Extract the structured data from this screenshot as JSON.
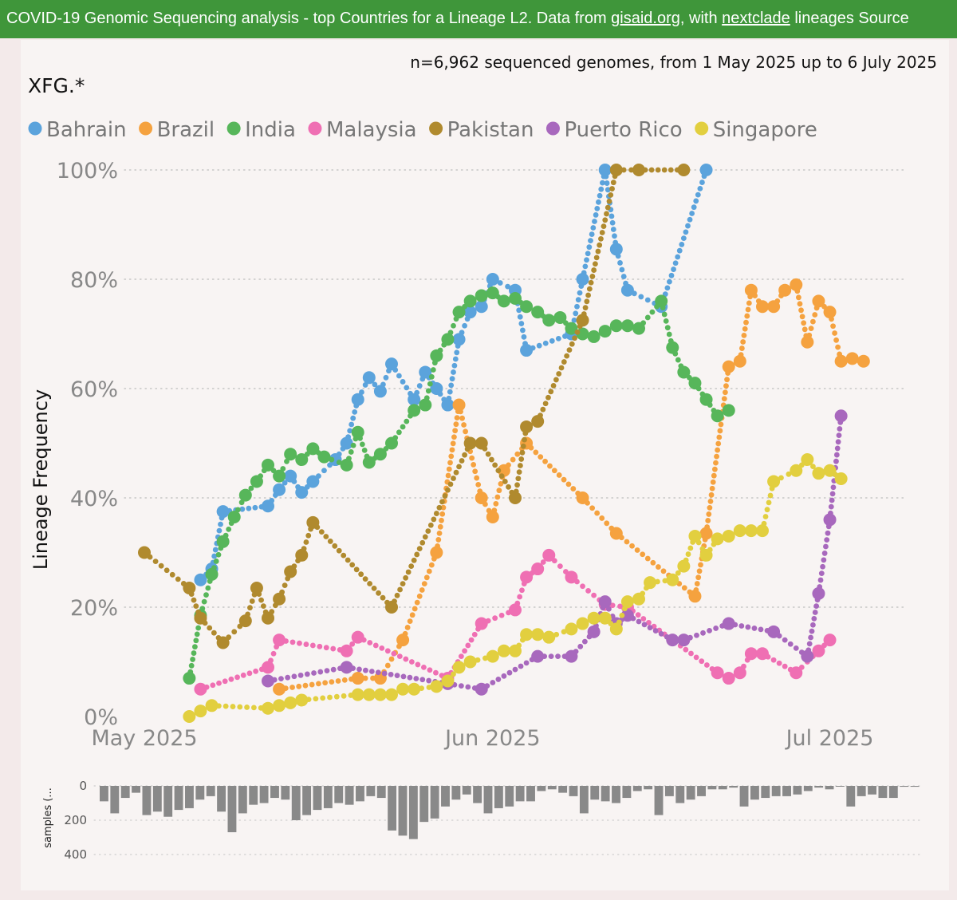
{
  "banner": {
    "prefix": "COVID-19 Genomic Sequencing analysis - top Countries for a Lineage L2. Data from ",
    "link1": "gisaid.org",
    "middle": ", with ",
    "link2": "nextclade",
    "suffix": " lineages Source"
  },
  "chart_data": {
    "type": "line",
    "subtitle": "n=6,962 sequenced genomes, from 1 May 2025 up to 6 July 2025",
    "lineage_label": "XFG.*",
    "ylabel": "Lineage Frequency",
    "yticks": [
      "0%",
      "20%",
      "40%",
      "60%",
      "80%",
      "100%"
    ],
    "ylim": [
      0,
      100
    ],
    "xticks": [
      {
        "label": "May 2025",
        "date": "2025-05-01"
      },
      {
        "label": "Jun 2025",
        "date": "2025-06-01"
      },
      {
        "label": "Jul 2025",
        "date": "2025-07-01"
      }
    ],
    "xlim": [
      "2025-05-01",
      "2025-07-06"
    ],
    "grid": "horizontal dotted",
    "legend_position": "top",
    "series": [
      {
        "name": "Bahrain",
        "color": "#5ba3dc",
        "points": [
          [
            "2025-05-06",
            25
          ],
          [
            "2025-05-07",
            27
          ],
          [
            "2025-05-08",
            37.5
          ],
          [
            "2025-05-12",
            38.5
          ],
          [
            "2025-05-13",
            41.5
          ],
          [
            "2025-05-14",
            44
          ],
          [
            "2025-05-15",
            41
          ],
          [
            "2025-05-16",
            43
          ],
          [
            "2025-05-18",
            47
          ],
          [
            "2025-05-19",
            50
          ],
          [
            "2025-05-20",
            58
          ],
          [
            "2025-05-21",
            62
          ],
          [
            "2025-05-22",
            59.5
          ],
          [
            "2025-05-23",
            64.5
          ],
          [
            "2025-05-25",
            58
          ],
          [
            "2025-05-26",
            63
          ],
          [
            "2025-05-27",
            60
          ],
          [
            "2025-05-28",
            57
          ],
          [
            "2025-05-29",
            69
          ],
          [
            "2025-05-30",
            74
          ],
          [
            "2025-05-31",
            75
          ],
          [
            "2025-06-01",
            80
          ],
          [
            "2025-06-03",
            78
          ],
          [
            "2025-06-04",
            67
          ],
          [
            "2025-06-08",
            70
          ],
          [
            "2025-06-09",
            80
          ],
          [
            "2025-06-11",
            100
          ],
          [
            "2025-06-12",
            85.5
          ],
          [
            "2025-06-13",
            78
          ],
          [
            "2025-06-16",
            75
          ],
          [
            "2025-06-20",
            100
          ]
        ]
      },
      {
        "name": "Brazil",
        "color": "#f5a23f",
        "points": [
          [
            "2025-05-13",
            5
          ],
          [
            "2025-05-20",
            7
          ],
          [
            "2025-05-22",
            7
          ],
          [
            "2025-05-24",
            14
          ],
          [
            "2025-05-27",
            30
          ],
          [
            "2025-05-29",
            57
          ],
          [
            "2025-05-31",
            40
          ],
          [
            "2025-06-01",
            36.5
          ],
          [
            "2025-06-02",
            45
          ],
          [
            "2025-06-04",
            50
          ],
          [
            "2025-06-09",
            40
          ],
          [
            "2025-06-12",
            33.5
          ],
          [
            "2025-06-19",
            22
          ],
          [
            "2025-06-20",
            33.5
          ],
          [
            "2025-06-22",
            64
          ],
          [
            "2025-06-23",
            65
          ],
          [
            "2025-06-24",
            78
          ],
          [
            "2025-06-25",
            75
          ],
          [
            "2025-06-26",
            75
          ],
          [
            "2025-06-27",
            78
          ],
          [
            "2025-06-28",
            79
          ],
          [
            "2025-06-29",
            68.5
          ],
          [
            "2025-06-30",
            76
          ],
          [
            "2025-07-01",
            74
          ],
          [
            "2025-07-02",
            65
          ],
          [
            "2025-07-03",
            65.5
          ],
          [
            "2025-07-04",
            65
          ]
        ]
      },
      {
        "name": "India",
        "color": "#57b65a",
        "points": [
          [
            "2025-05-05",
            7
          ],
          [
            "2025-05-06",
            18.5
          ],
          [
            "2025-05-07",
            26
          ],
          [
            "2025-05-08",
            32
          ],
          [
            "2025-05-09",
            36.5
          ],
          [
            "2025-05-10",
            40.5
          ],
          [
            "2025-05-11",
            43
          ],
          [
            "2025-05-12",
            46
          ],
          [
            "2025-05-13",
            44
          ],
          [
            "2025-05-14",
            48
          ],
          [
            "2025-05-15",
            47
          ],
          [
            "2025-05-16",
            49
          ],
          [
            "2025-05-17",
            47.5
          ],
          [
            "2025-05-19",
            46
          ],
          [
            "2025-05-20",
            52
          ],
          [
            "2025-05-21",
            46.5
          ],
          [
            "2025-05-22",
            48
          ],
          [
            "2025-05-23",
            50
          ],
          [
            "2025-05-25",
            56
          ],
          [
            "2025-05-26",
            57
          ],
          [
            "2025-05-27",
            66
          ],
          [
            "2025-05-28",
            69
          ],
          [
            "2025-05-29",
            74
          ],
          [
            "2025-05-30",
            76
          ],
          [
            "2025-05-31",
            77
          ],
          [
            "2025-06-01",
            77.5
          ],
          [
            "2025-06-02",
            76
          ],
          [
            "2025-06-03",
            76.5
          ],
          [
            "2025-06-04",
            75
          ],
          [
            "2025-06-05",
            74
          ],
          [
            "2025-06-06",
            72.5
          ],
          [
            "2025-06-07",
            73
          ],
          [
            "2025-06-08",
            71
          ],
          [
            "2025-06-09",
            70
          ],
          [
            "2025-06-10",
            69.5
          ],
          [
            "2025-06-11",
            70.5
          ],
          [
            "2025-06-12",
            71.5
          ],
          [
            "2025-06-13",
            71.5
          ],
          [
            "2025-06-14",
            71
          ],
          [
            "2025-06-16",
            76
          ],
          [
            "2025-06-17",
            67.5
          ],
          [
            "2025-06-18",
            63
          ],
          [
            "2025-06-19",
            61
          ],
          [
            "2025-06-20",
            58
          ],
          [
            "2025-06-21",
            55
          ],
          [
            "2025-06-22",
            56
          ]
        ]
      },
      {
        "name": "Malaysia",
        "color": "#ef6fb3",
        "points": [
          [
            "2025-05-06",
            5
          ],
          [
            "2025-05-12",
            9
          ],
          [
            "2025-05-13",
            14
          ],
          [
            "2025-05-19",
            12
          ],
          [
            "2025-05-20",
            14.5
          ],
          [
            "2025-05-28",
            7
          ],
          [
            "2025-05-31",
            17
          ],
          [
            "2025-06-03",
            19.5
          ],
          [
            "2025-06-04",
            25.5
          ],
          [
            "2025-06-05",
            27
          ],
          [
            "2025-06-06",
            29.5
          ],
          [
            "2025-06-08",
            25.5
          ],
          [
            "2025-06-11",
            20.5
          ],
          [
            "2025-06-13",
            20
          ],
          [
            "2025-06-21",
            8
          ],
          [
            "2025-06-22",
            7
          ],
          [
            "2025-06-23",
            8
          ],
          [
            "2025-06-24",
            11.5
          ],
          [
            "2025-06-25",
            11.5
          ],
          [
            "2025-06-28",
            8
          ],
          [
            "2025-06-30",
            12
          ],
          [
            "2025-07-01",
            14
          ]
        ]
      },
      {
        "name": "Pakistan",
        "color": "#b08a2e",
        "points": [
          [
            "2025-05-01",
            30
          ],
          [
            "2025-05-05",
            23.5
          ],
          [
            "2025-05-06",
            18
          ],
          [
            "2025-05-08",
            13.5
          ],
          [
            "2025-05-10",
            17.5
          ],
          [
            "2025-05-11",
            23.5
          ],
          [
            "2025-05-12",
            18
          ],
          [
            "2025-05-13",
            21.5
          ],
          [
            "2025-05-14",
            26.5
          ],
          [
            "2025-05-15",
            29.5
          ],
          [
            "2025-05-16",
            35.5
          ],
          [
            "2025-05-23",
            20
          ],
          [
            "2025-05-30",
            50
          ],
          [
            "2025-05-31",
            50
          ],
          [
            "2025-06-03",
            40
          ],
          [
            "2025-06-04",
            53
          ],
          [
            "2025-06-05",
            54
          ],
          [
            "2025-06-09",
            72.5
          ],
          [
            "2025-06-12",
            100
          ],
          [
            "2025-06-14",
            100
          ],
          [
            "2025-06-18",
            100
          ]
        ]
      },
      {
        "name": "Puerto Rico",
        "color": "#a868bd",
        "points": [
          [
            "2025-05-12",
            6.5
          ],
          [
            "2025-05-19",
            9
          ],
          [
            "2025-05-28",
            6
          ],
          [
            "2025-05-31",
            5
          ],
          [
            "2025-06-05",
            11
          ],
          [
            "2025-06-08",
            11
          ],
          [
            "2025-06-10",
            15.5
          ],
          [
            "2025-06-11",
            21
          ],
          [
            "2025-06-12",
            17
          ],
          [
            "2025-06-13",
            18.5
          ],
          [
            "2025-06-17",
            14
          ],
          [
            "2025-06-18",
            14
          ],
          [
            "2025-06-22",
            17
          ],
          [
            "2025-06-26",
            15.5
          ],
          [
            "2025-06-29",
            11
          ],
          [
            "2025-06-30",
            22.5
          ],
          [
            "2025-07-01",
            36
          ],
          [
            "2025-07-02",
            55
          ]
        ]
      },
      {
        "name": "Singapore",
        "color": "#e2cf3f",
        "points": [
          [
            "2025-05-05",
            0
          ],
          [
            "2025-05-06",
            1
          ],
          [
            "2025-05-07",
            2
          ],
          [
            "2025-05-12",
            1.5
          ],
          [
            "2025-05-13",
            2
          ],
          [
            "2025-05-14",
            2.5
          ],
          [
            "2025-05-15",
            3
          ],
          [
            "2025-05-20",
            4
          ],
          [
            "2025-05-21",
            4
          ],
          [
            "2025-05-22",
            4
          ],
          [
            "2025-05-23",
            4
          ],
          [
            "2025-05-24",
            5
          ],
          [
            "2025-05-25",
            5
          ],
          [
            "2025-05-27",
            5.5
          ],
          [
            "2025-05-28",
            6.5
          ],
          [
            "2025-05-29",
            9
          ],
          [
            "2025-05-30",
            10
          ],
          [
            "2025-06-01",
            11
          ],
          [
            "2025-06-02",
            12
          ],
          [
            "2025-06-03",
            12
          ],
          [
            "2025-06-04",
            15
          ],
          [
            "2025-06-05",
            15
          ],
          [
            "2025-06-06",
            14.5
          ],
          [
            "2025-06-08",
            16
          ],
          [
            "2025-06-09",
            17
          ],
          [
            "2025-06-10",
            18
          ],
          [
            "2025-06-11",
            18
          ],
          [
            "2025-06-12",
            16
          ],
          [
            "2025-06-13",
            21
          ],
          [
            "2025-06-14",
            21.5
          ],
          [
            "2025-06-15",
            24.5
          ],
          [
            "2025-06-17",
            25
          ],
          [
            "2025-06-18",
            27.5
          ],
          [
            "2025-06-19",
            33
          ],
          [
            "2025-06-20",
            29.5
          ],
          [
            "2025-06-21",
            32.5
          ],
          [
            "2025-06-22",
            33
          ],
          [
            "2025-06-23",
            34
          ],
          [
            "2025-06-24",
            34
          ],
          [
            "2025-06-25",
            34
          ],
          [
            "2025-06-26",
            43
          ],
          [
            "2025-06-28",
            45
          ],
          [
            "2025-06-29",
            47
          ],
          [
            "2025-06-30",
            44.5
          ],
          [
            "2025-07-01",
            45
          ],
          [
            "2025-07-02",
            43.5
          ]
        ]
      }
    ],
    "samples": {
      "ylabel": "samples (...",
      "yticks": [
        "0",
        "200",
        "400"
      ],
      "ylim": [
        0,
        480
      ],
      "values": [
        90,
        160,
        70,
        40,
        170,
        150,
        180,
        140,
        130,
        80,
        60,
        150,
        270,
        160,
        110,
        100,
        70,
        80,
        200,
        170,
        140,
        130,
        100,
        110,
        90,
        60,
        70,
        260,
        290,
        310,
        210,
        190,
        120,
        80,
        50,
        100,
        160,
        130,
        120,
        90,
        90,
        30,
        20,
        40,
        60,
        160,
        80,
        90,
        100,
        70,
        30,
        20,
        170,
        60,
        100,
        80,
        60,
        20,
        20,
        10,
        120,
        80,
        70,
        60,
        60,
        50,
        30,
        10,
        20,
        0,
        120,
        60,
        50,
        70,
        70,
        5,
        5
      ]
    }
  }
}
